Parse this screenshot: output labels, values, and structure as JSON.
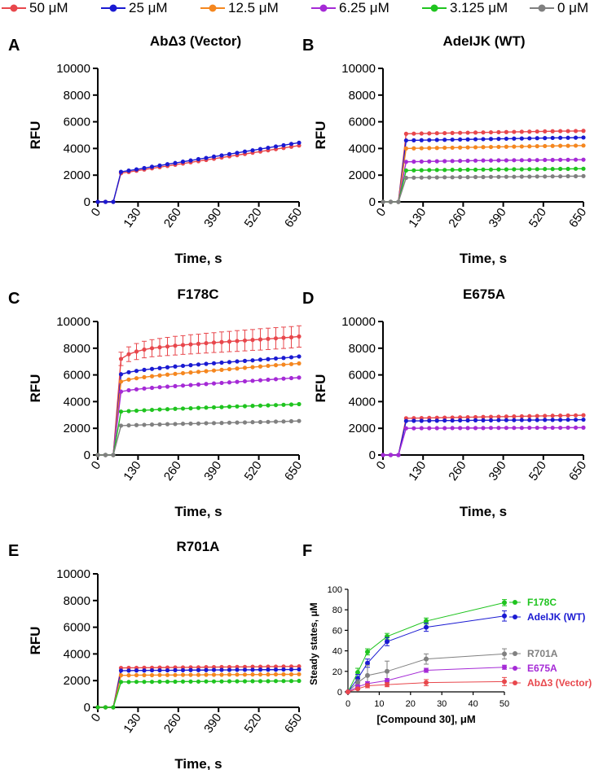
{
  "legend": {
    "items": [
      {
        "label": "50 μM",
        "color": "#e8474c"
      },
      {
        "label": "25 μM",
        "color": "#1a1ad2"
      },
      {
        "label": "12.5 μM",
        "color": "#f5871f"
      },
      {
        "label": "6.25 μM",
        "color": "#a52ad6"
      },
      {
        "label": "3.125 μM",
        "color": "#1fc41f"
      },
      {
        "label": "0 μM",
        "color": "#808080"
      }
    ]
  },
  "chart_data": [
    {
      "panel": "A",
      "title": "AbΔ3 (Vector)",
      "type": "line",
      "xlabel": "Time, s",
      "ylabel": "RFU",
      "xlim": [
        0,
        650
      ],
      "ylim": [
        0,
        10000
      ],
      "xticks": [
        0,
        130,
        260,
        390,
        520,
        650
      ],
      "yticks": [
        0,
        2000,
        4000,
        6000,
        8000,
        10000
      ],
      "x": [
        0,
        25,
        50,
        75,
        100,
        125,
        150,
        175,
        200,
        225,
        250,
        275,
        300,
        325,
        350,
        375,
        400,
        425,
        450,
        475,
        500,
        525,
        550,
        575,
        600,
        625,
        650
      ],
      "series": [
        {
          "name": "50 μM",
          "color": "#e8474c",
          "values": [
            0,
            0,
            0,
            2150,
            2240,
            2330,
            2420,
            2510,
            2600,
            2690,
            2780,
            2870,
            2960,
            3050,
            3140,
            3230,
            3320,
            3410,
            3500,
            3590,
            3680,
            3770,
            3860,
            3950,
            4040,
            4130,
            4220
          ]
        },
        {
          "name": "25 μM",
          "color": "#1a1ad2",
          "values": [
            0,
            0,
            0,
            2250,
            2340,
            2430,
            2530,
            2630,
            2720,
            2820,
            2910,
            3010,
            3100,
            3200,
            3290,
            3390,
            3480,
            3580,
            3670,
            3770,
            3860,
            3960,
            4050,
            4150,
            4240,
            4340,
            4430
          ]
        }
      ]
    },
    {
      "panel": "B",
      "title": "AdeIJK (WT)",
      "type": "line",
      "xlabel": "Time, s",
      "ylabel": "RFU",
      "xlim": [
        0,
        650
      ],
      "ylim": [
        0,
        10000
      ],
      "xticks": [
        0,
        130,
        260,
        390,
        520,
        650
      ],
      "yticks": [
        0,
        2000,
        4000,
        6000,
        8000,
        10000
      ],
      "x": [
        0,
        25,
        50,
        75,
        100,
        125,
        150,
        175,
        200,
        225,
        250,
        275,
        300,
        325,
        350,
        375,
        400,
        425,
        450,
        475,
        500,
        525,
        550,
        575,
        600,
        625,
        650
      ],
      "series": [
        {
          "name": "50 μM",
          "color": "#e8474c",
          "values": [
            0,
            0,
            0,
            5100,
            5110,
            5120,
            5130,
            5140,
            5150,
            5160,
            5170,
            5180,
            5190,
            5200,
            5210,
            5220,
            5230,
            5240,
            5250,
            5260,
            5270,
            5280,
            5290,
            5300,
            5300,
            5310,
            5320
          ]
        },
        {
          "name": "25 μM",
          "color": "#1a1ad2",
          "values": [
            0,
            0,
            0,
            4600,
            4610,
            4620,
            4630,
            4640,
            4650,
            4660,
            4670,
            4680,
            4690,
            4700,
            4710,
            4720,
            4730,
            4740,
            4750,
            4760,
            4770,
            4780,
            4790,
            4800,
            4800,
            4810,
            4820
          ]
        },
        {
          "name": "12.5 μM",
          "color": "#f5871f",
          "values": [
            0,
            0,
            0,
            4000,
            4010,
            4020,
            4030,
            4040,
            4050,
            4060,
            4070,
            4080,
            4090,
            4100,
            4110,
            4120,
            4130,
            4140,
            4150,
            4160,
            4170,
            4180,
            4190,
            4200,
            4200,
            4210,
            4220
          ]
        },
        {
          "name": "6.25 μM",
          "color": "#a52ad6",
          "values": [
            0,
            0,
            0,
            3000,
            3010,
            3020,
            3030,
            3040,
            3050,
            3060,
            3070,
            3080,
            3090,
            3100,
            3100,
            3110,
            3110,
            3120,
            3120,
            3130,
            3130,
            3140,
            3140,
            3150,
            3150,
            3160,
            3160
          ]
        },
        {
          "name": "3.125 μM",
          "color": "#1fc41f",
          "values": [
            0,
            0,
            0,
            2350,
            2360,
            2370,
            2380,
            2390,
            2390,
            2400,
            2400,
            2410,
            2410,
            2420,
            2420,
            2430,
            2430,
            2440,
            2440,
            2450,
            2450,
            2460,
            2460,
            2470,
            2470,
            2480,
            2480
          ]
        },
        {
          "name": "0 μM",
          "color": "#808080",
          "values": [
            0,
            0,
            0,
            1800,
            1810,
            1820,
            1830,
            1830,
            1840,
            1840,
            1850,
            1850,
            1860,
            1860,
            1870,
            1870,
            1880,
            1880,
            1890,
            1890,
            1900,
            1900,
            1910,
            1910,
            1920,
            1920,
            1930
          ]
        }
      ]
    },
    {
      "panel": "C",
      "title": "F178C",
      "type": "line",
      "xlabel": "Time, s",
      "ylabel": "RFU",
      "xlim": [
        0,
        650
      ],
      "ylim": [
        0,
        10000
      ],
      "xticks": [
        0,
        130,
        260,
        390,
        520,
        650
      ],
      "yticks": [
        0,
        2000,
        4000,
        6000,
        8000,
        10000
      ],
      "x": [
        0,
        25,
        50,
        75,
        100,
        125,
        150,
        175,
        200,
        225,
        250,
        275,
        300,
        325,
        350,
        375,
        400,
        425,
        450,
        475,
        500,
        525,
        550,
        575,
        600,
        625,
        650
      ],
      "error_series": "50 μM",
      "errors": [
        0,
        0,
        0,
        500,
        550,
        600,
        620,
        640,
        660,
        680,
        700,
        700,
        720,
        720,
        740,
        740,
        760,
        760,
        780,
        780,
        780,
        800,
        800,
        800,
        800,
        800,
        800
      ],
      "series": [
        {
          "name": "50 μM",
          "color": "#e8474c",
          "values": [
            0,
            0,
            0,
            7200,
            7550,
            7750,
            7900,
            8000,
            8070,
            8130,
            8190,
            8240,
            8290,
            8330,
            8380,
            8420,
            8460,
            8500,
            8540,
            8580,
            8620,
            8660,
            8700,
            8740,
            8780,
            8820,
            8880
          ]
        },
        {
          "name": "25 μM",
          "color": "#1a1ad2",
          "values": [
            0,
            0,
            0,
            6050,
            6200,
            6300,
            6380,
            6450,
            6510,
            6570,
            6630,
            6680,
            6730,
            6780,
            6830,
            6870,
            6920,
            6960,
            7010,
            7050,
            7090,
            7140,
            7180,
            7230,
            7270,
            7320,
            7380
          ]
        },
        {
          "name": "12.5 μM",
          "color": "#f5871f",
          "values": [
            0,
            0,
            0,
            5500,
            5650,
            5750,
            5830,
            5900,
            5960,
            6020,
            6080,
            6130,
            6180,
            6230,
            6280,
            6330,
            6380,
            6430,
            6480,
            6530,
            6580,
            6630,
            6680,
            6730,
            6770,
            6810,
            6860
          ]
        },
        {
          "name": "6.25 μM",
          "color": "#a52ad6",
          "values": [
            0,
            0,
            0,
            4750,
            4850,
            4920,
            4980,
            5030,
            5080,
            5120,
            5160,
            5200,
            5240,
            5280,
            5320,
            5360,
            5400,
            5440,
            5480,
            5520,
            5560,
            5600,
            5640,
            5680,
            5720,
            5760,
            5800
          ]
        },
        {
          "name": "3.125 μM",
          "color": "#1fc41f",
          "values": [
            0,
            0,
            0,
            3250,
            3290,
            3320,
            3350,
            3380,
            3410,
            3430,
            3460,
            3480,
            3500,
            3530,
            3550,
            3570,
            3590,
            3620,
            3640,
            3660,
            3680,
            3700,
            3720,
            3740,
            3760,
            3780,
            3810
          ]
        },
        {
          "name": "0 μM",
          "color": "#808080",
          "values": [
            0,
            0,
            0,
            2200,
            2220,
            2240,
            2260,
            2280,
            2290,
            2310,
            2320,
            2340,
            2350,
            2360,
            2380,
            2390,
            2400,
            2420,
            2430,
            2440,
            2460,
            2470,
            2480,
            2500,
            2510,
            2530,
            2550
          ]
        }
      ]
    },
    {
      "panel": "D",
      "title": "E675A",
      "type": "line",
      "xlabel": "Time, s",
      "ylabel": "RFU",
      "xlim": [
        0,
        650
      ],
      "ylim": [
        0,
        10000
      ],
      "xticks": [
        0,
        130,
        260,
        390,
        520,
        650
      ],
      "yticks": [
        0,
        2000,
        4000,
        6000,
        8000,
        10000
      ],
      "x": [
        0,
        25,
        50,
        75,
        100,
        125,
        150,
        175,
        200,
        225,
        250,
        275,
        300,
        325,
        350,
        375,
        400,
        425,
        450,
        475,
        500,
        525,
        550,
        575,
        600,
        625,
        650
      ],
      "series": [
        {
          "name": "50 μM",
          "color": "#e8474c",
          "values": [
            0,
            0,
            0,
            2750,
            2760,
            2770,
            2780,
            2790,
            2800,
            2810,
            2820,
            2830,
            2840,
            2850,
            2860,
            2870,
            2880,
            2890,
            2900,
            2910,
            2920,
            2930,
            2940,
            2950,
            2960,
            2970,
            2980
          ]
        },
        {
          "name": "25 μM",
          "color": "#1a1ad2",
          "values": [
            0,
            0,
            0,
            2550,
            2560,
            2560,
            2570,
            2570,
            2580,
            2580,
            2590,
            2590,
            2600,
            2600,
            2600,
            2610,
            2610,
            2610,
            2620,
            2620,
            2620,
            2630,
            2630,
            2630,
            2640,
            2640,
            2650
          ]
        },
        {
          "name": "6.25 μM",
          "color": "#a52ad6",
          "values": [
            0,
            0,
            0,
            2000,
            2000,
            2010,
            2010,
            2010,
            2010,
            2020,
            2020,
            2020,
            2020,
            2020,
            2030,
            2030,
            2030,
            2030,
            2030,
            2040,
            2040,
            2040,
            2040,
            2040,
            2050,
            2050,
            2050
          ]
        }
      ]
    },
    {
      "panel": "E",
      "title": "R701A",
      "type": "line",
      "xlabel": "Time, s",
      "ylabel": "RFU",
      "xlim": [
        0,
        650
      ],
      "ylim": [
        0,
        10000
      ],
      "xticks": [
        0,
        130,
        260,
        390,
        520,
        650
      ],
      "yticks": [
        0,
        2000,
        4000,
        6000,
        8000,
        10000
      ],
      "x": [
        0,
        25,
        50,
        75,
        100,
        125,
        150,
        175,
        200,
        225,
        250,
        275,
        300,
        325,
        350,
        375,
        400,
        425,
        450,
        475,
        500,
        525,
        550,
        575,
        600,
        625,
        650
      ],
      "series": [
        {
          "name": "50 μM",
          "color": "#e8474c",
          "values": [
            0,
            0,
            0,
            2950,
            2960,
            2960,
            2970,
            2970,
            2980,
            2980,
            2990,
            2990,
            3000,
            3000,
            3010,
            3010,
            3020,
            3020,
            3030,
            3030,
            3040,
            3040,
            3050,
            3050,
            3060,
            3060,
            3070
          ]
        },
        {
          "name": "25 μM",
          "color": "#1a1ad2",
          "values": [
            0,
            0,
            0,
            2750,
            2750,
            2760,
            2760,
            2770,
            2770,
            2770,
            2780,
            2780,
            2790,
            2790,
            2790,
            2800,
            2800,
            2800,
            2810,
            2810,
            2810,
            2820,
            2820,
            2820,
            2830,
            2830,
            2840
          ]
        },
        {
          "name": "12.5 μM",
          "color": "#f5871f",
          "values": [
            0,
            0,
            0,
            2400,
            2400,
            2410,
            2410,
            2410,
            2420,
            2420,
            2420,
            2430,
            2430,
            2430,
            2440,
            2440,
            2440,
            2450,
            2450,
            2450,
            2460,
            2460,
            2460,
            2470,
            2470,
            2470,
            2480
          ]
        },
        {
          "name": "3.125 μM",
          "color": "#1fc41f",
          "values": [
            0,
            0,
            0,
            1900,
            1900,
            1910,
            1910,
            1910,
            1920,
            1920,
            1920,
            1930,
            1930,
            1930,
            1940,
            1940,
            1940,
            1950,
            1950,
            1950,
            1960,
            1960,
            1960,
            1970,
            1970,
            1970,
            1980
          ]
        }
      ]
    },
    {
      "panel": "F",
      "title": "",
      "type": "line",
      "xlabel": "[Compound 30], μM",
      "ylabel": "Steady states, μM",
      "xlim": [
        0,
        50
      ],
      "ylim": [
        0,
        100
      ],
      "xticks": [
        0,
        10,
        20,
        30,
        40,
        50
      ],
      "yticks": [
        0,
        20,
        40,
        60,
        80,
        100
      ],
      "x": [
        0,
        3.125,
        6.25,
        12.5,
        25,
        50
      ],
      "series": [
        {
          "name": "F178C",
          "color": "#1fc41f",
          "values": [
            0,
            19,
            39,
            54,
            69,
            87
          ],
          "errors": [
            0,
            4,
            3,
            3,
            3,
            3
          ]
        },
        {
          "name": "AdeIJK (WT)",
          "color": "#1a1ad2",
          "values": [
            0,
            13,
            28,
            49,
            63,
            74
          ],
          "errors": [
            0,
            4,
            4,
            4,
            4,
            5
          ]
        },
        {
          "name": "R701A",
          "color": "#808080",
          "values": [
            0,
            9,
            16,
            20,
            32,
            37
          ],
          "errors": [
            0,
            3,
            10,
            10,
            5,
            5
          ]
        },
        {
          "name": "E675A",
          "color": "#a52ad6",
          "values": [
            0,
            5,
            8,
            11,
            21,
            24
          ],
          "errors": [
            0,
            2,
            2,
            2,
            2,
            2
          ]
        },
        {
          "name": "AbΔ3 (Vector)",
          "color": "#e8474c",
          "values": [
            0,
            3,
            6,
            7,
            9,
            10
          ],
          "errors": [
            0,
            1,
            2,
            2,
            3,
            4
          ]
        }
      ]
    }
  ]
}
